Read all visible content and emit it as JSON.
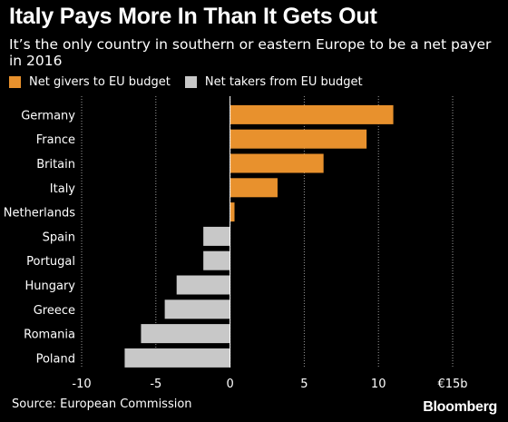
{
  "title": "Italy Pays More In Than It Gets Out",
  "subtitle": "It’s the only country in southern or eastern Europe to be a net payer in 2016",
  "legend": [
    {
      "label": "Net givers to EU budget",
      "color": "#e8912d"
    },
    {
      "label": "Net takers from EU budget",
      "color": "#c8c8c8"
    }
  ],
  "source": "Source: European Commission",
  "logo": "Bloomberg",
  "chart_data": {
    "type": "bar",
    "orientation": "horizontal",
    "categories": [
      "Germany",
      "France",
      "Britain",
      "Italy",
      "Netherlands",
      "Spain",
      "Portugal",
      "Hungary",
      "Greece",
      "Romania",
      "Poland"
    ],
    "values": [
      11.0,
      9.2,
      6.3,
      3.2,
      0.3,
      -1.8,
      -1.8,
      -3.6,
      -4.4,
      -6.0,
      -7.1
    ],
    "series": [
      {
        "name": "Net givers to EU budget",
        "color": "#e8912d"
      },
      {
        "name": "Net takers from EU budget",
        "color": "#c8c8c8"
      }
    ],
    "xlim": [
      -10,
      15
    ],
    "xticks": [
      -10,
      -5,
      0,
      5,
      10,
      15
    ],
    "xtick_labels": [
      "-10",
      "-5",
      "0",
      "5",
      "10",
      "€15b"
    ],
    "grid": "vertical dotted"
  }
}
